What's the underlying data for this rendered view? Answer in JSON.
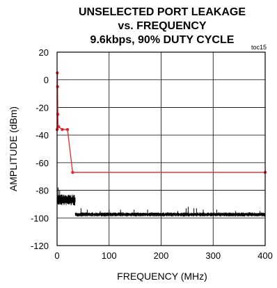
{
  "chart_data": {
    "type": "line",
    "title_lines": [
      "UNSELECTED PORT LEAKAGE",
      "vs. FREQUENCY",
      "9.6kbps, 90% DUTY CYCLE"
    ],
    "note": "toc15",
    "xlabel": "FREQUENCY (MHz)",
    "ylabel": "AMPLITUDE (dBm)",
    "xlim": [
      0,
      400
    ],
    "ylim": [
      -120,
      20
    ],
    "x_ticks": [
      0,
      100,
      200,
      300,
      400
    ],
    "y_ticks": [
      20,
      0,
      -20,
      -40,
      -60,
      -80,
      -100,
      -120
    ],
    "grid": true,
    "colors": {
      "signal": "#e8262b",
      "noise": "#000000"
    },
    "series": [
      {
        "color": "#e8262b",
        "markers": true,
        "x": [
          0,
          0.5,
          1,
          1.5,
          2,
          3,
          10,
          20,
          30,
          400
        ],
        "y": [
          -36,
          5,
          -5,
          -25,
          -34,
          -34,
          -36,
          -36,
          -67,
          -67
        ]
      },
      {
        "color": "#000000",
        "markers": false,
        "floor_segments": [
          {
            "x": [
              0,
              35
            ],
            "base": -87,
            "spread": 4
          },
          {
            "x": [
              35,
              400
            ],
            "base": -97.5,
            "spread": 1.5
          }
        ],
        "spikes": [
          {
            "x": 2,
            "y": -78
          },
          {
            "x": 5,
            "y": -80
          },
          {
            "x": 9,
            "y": -83
          },
          {
            "x": 13,
            "y": -84
          },
          {
            "x": 18,
            "y": -85
          },
          {
            "x": 24,
            "y": -84
          },
          {
            "x": 34,
            "y": -91
          },
          {
            "x": 46,
            "y": -93
          },
          {
            "x": 58,
            "y": -94
          },
          {
            "x": 83,
            "y": -95
          },
          {
            "x": 100,
            "y": -94
          },
          {
            "x": 122,
            "y": -94
          },
          {
            "x": 148,
            "y": -94
          },
          {
            "x": 174,
            "y": -94
          },
          {
            "x": 232,
            "y": -95
          },
          {
            "x": 248,
            "y": -93
          },
          {
            "x": 252,
            "y": -92
          },
          {
            "x": 263,
            "y": -93
          },
          {
            "x": 268,
            "y": -93
          },
          {
            "x": 281,
            "y": -94
          },
          {
            "x": 307,
            "y": -94
          },
          {
            "x": 343,
            "y": -95
          },
          {
            "x": 370,
            "y": -96
          },
          {
            "x": 390,
            "y": -95
          }
        ]
      }
    ]
  }
}
